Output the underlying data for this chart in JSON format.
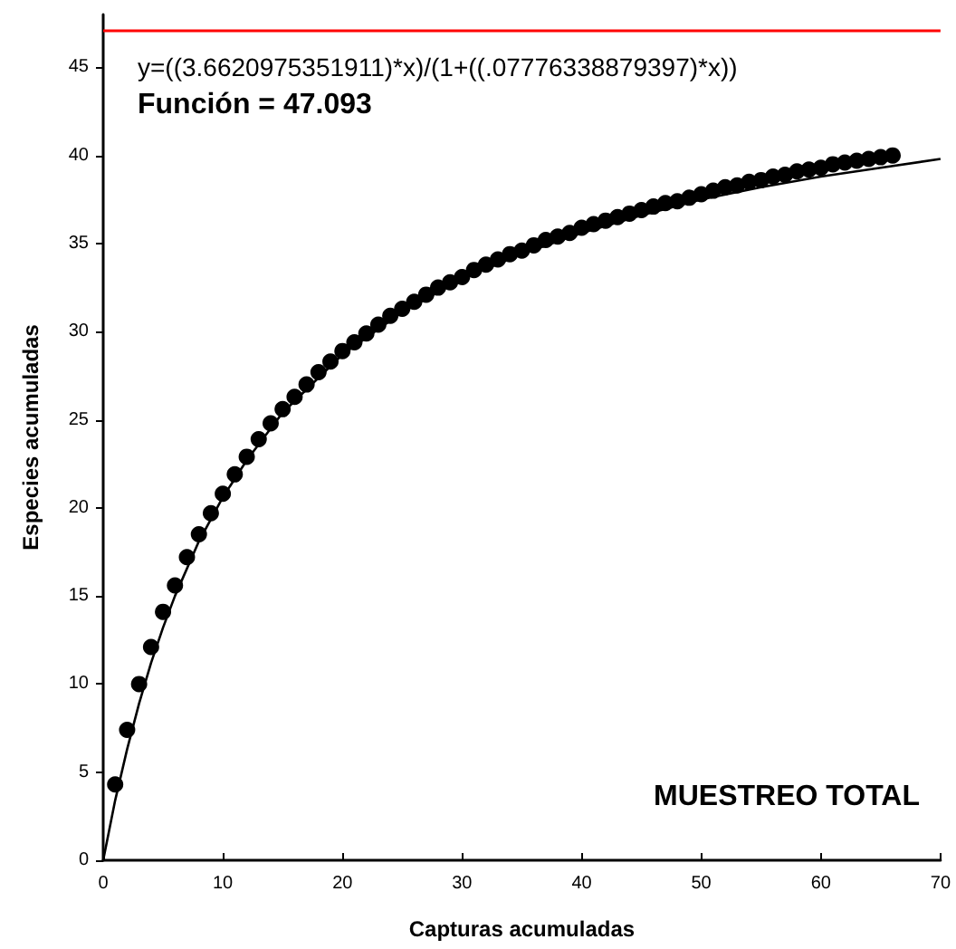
{
  "chart_data": {
    "type": "scatter",
    "xlabel": "Capturas acumuladas",
    "ylabel": "Especies acumuladas",
    "xlim": [
      0,
      70
    ],
    "xticks": [
      0,
      10,
      20,
      30,
      40,
      50,
      60,
      70
    ],
    "ylim": [
      0,
      48
    ],
    "yticks": [
      0,
      5,
      10,
      15,
      20,
      25,
      30,
      35,
      40,
      45
    ],
    "grid": false,
    "marker": "circle",
    "annotations": [
      "y=((3.6620975351911)*x)/(1+((.07776338879397)*x))",
      "Función = 47.093",
      "MUESTREO TOTAL"
    ],
    "ref_lines": [
      {
        "axis": "y",
        "value": 47.093,
        "color": "#ff0000"
      }
    ],
    "series": [
      {
        "color": "#000000",
        "x": [
          1,
          2,
          3,
          4,
          5,
          6,
          7,
          8,
          9,
          10,
          11,
          12,
          13,
          14,
          15,
          16,
          17,
          18,
          19,
          20,
          21,
          22,
          23,
          24,
          25,
          26,
          27,
          28,
          29,
          30,
          31,
          32,
          33,
          34,
          35,
          36,
          37,
          38,
          39,
          40,
          41,
          42,
          43,
          44,
          45,
          46,
          47,
          48,
          49,
          50,
          51,
          52,
          53,
          54,
          55,
          56,
          57,
          58,
          59,
          60,
          61,
          62,
          63,
          64,
          65,
          66
        ],
        "values": [
          4.3,
          7.4,
          10,
          12.1,
          14.1,
          15.6,
          17.2,
          18.5,
          19.7,
          20.8,
          21.9,
          22.9,
          23.9,
          24.8,
          25.6,
          26.3,
          27.0,
          27.7,
          28.3,
          28.9,
          29.4,
          29.9,
          30.4,
          30.9,
          31.3,
          31.7,
          32.1,
          32.5,
          32.8,
          33.1,
          33.5,
          33.8,
          34.1,
          34.4,
          34.6,
          34.9,
          35.2,
          35.4,
          35.6,
          35.9,
          36.1,
          36.3,
          36.5,
          36.7,
          36.9,
          37.1,
          37.3,
          37.4,
          37.6,
          37.8,
          38.0,
          38.2,
          38.3,
          38.5,
          38.6,
          38.8,
          38.9,
          39.1,
          39.2,
          39.3,
          39.5,
          39.6,
          39.7,
          39.8,
          39.9,
          40.0
        ]
      },
      {
        "type": "line",
        "color": "#000000",
        "marker": "none",
        "line_style": "solid",
        "x": [
          0,
          1,
          2,
          3,
          4,
          5,
          6,
          8,
          10,
          12,
          15,
          20,
          25,
          30,
          35,
          40,
          45,
          50,
          55,
          60,
          65,
          70
        ],
        "values": [
          0,
          3.4,
          6.3,
          8.9,
          11.2,
          13.2,
          15.0,
          18.1,
          20.6,
          22.7,
          25.4,
          28.7,
          31.1,
          33.0,
          34.4,
          35.6,
          36.6,
          37.5,
          38.2,
          38.8,
          39.3,
          39.8
        ]
      }
    ]
  }
}
